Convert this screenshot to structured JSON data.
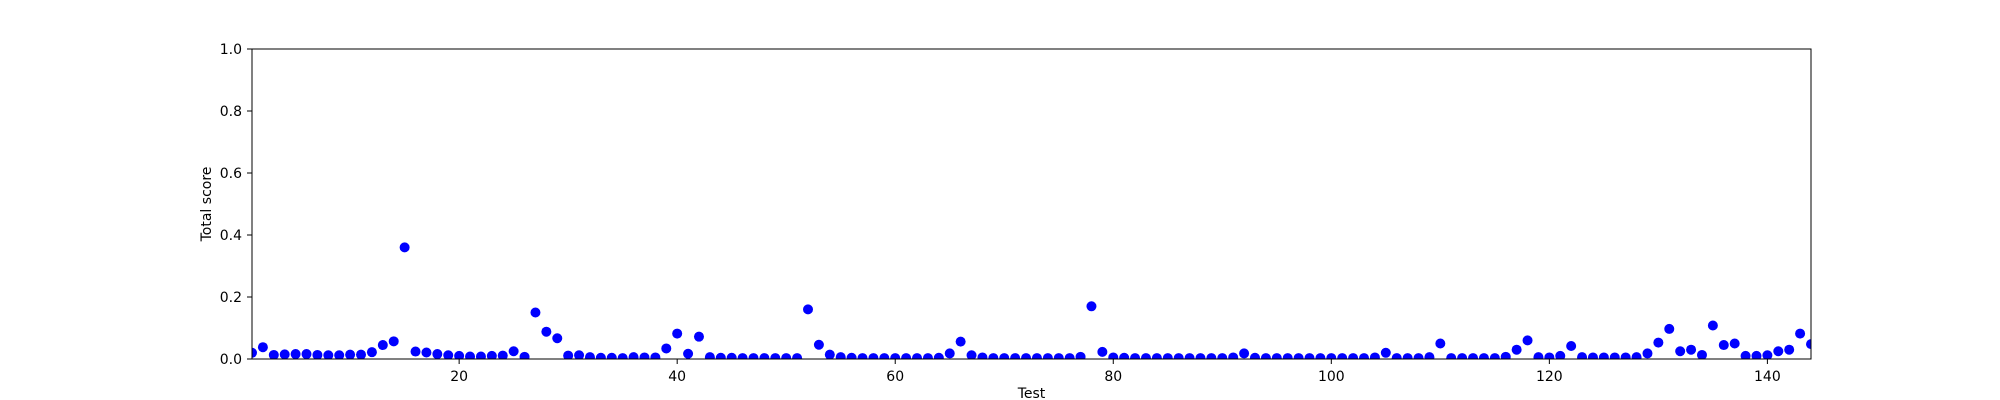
{
  "chart_data": {
    "type": "scatter",
    "xlabel": "Test",
    "ylabel": "Total score",
    "xlim": [
      1,
      144
    ],
    "ylim": [
      0,
      1
    ],
    "x_ticks": [
      "20",
      "40",
      "60",
      "80",
      "100",
      "120",
      "140"
    ],
    "y_ticks": [
      "0.0",
      "0.2",
      "0.4",
      "0.6",
      "0.8",
      "1.0"
    ],
    "grid": false,
    "marker_color": "#0000ff",
    "series": [
      {
        "x": [
          1,
          2,
          3,
          4,
          5,
          6,
          7,
          8,
          9,
          10,
          11,
          12,
          13,
          14,
          15,
          16,
          17,
          18,
          19,
          20,
          21,
          22,
          23,
          24,
          25,
          26,
          27,
          28,
          29,
          30,
          31,
          32,
          33,
          34,
          35,
          36,
          37,
          38,
          39,
          40,
          41,
          42,
          43,
          44,
          45,
          46,
          47,
          48,
          49,
          50,
          51,
          52,
          53,
          54,
          55,
          56,
          57,
          58,
          59,
          60,
          61,
          62,
          63,
          64,
          65,
          66,
          67,
          68,
          69,
          70,
          71,
          72,
          73,
          74,
          75,
          76,
          77,
          78,
          79,
          80,
          81,
          82,
          83,
          84,
          85,
          86,
          87,
          88,
          89,
          90,
          91,
          92,
          93,
          94,
          95,
          96,
          97,
          98,
          99,
          100,
          101,
          102,
          103,
          104,
          105,
          106,
          107,
          108,
          109,
          110,
          111,
          112,
          113,
          114,
          115,
          116,
          117,
          118,
          119,
          120,
          121,
          122,
          123,
          124,
          125,
          126,
          127,
          128,
          129,
          130,
          131,
          132,
          133,
          134,
          135,
          136,
          137,
          138,
          139,
          140,
          141,
          142,
          143,
          144
        ],
        "y": [
          0.02,
          0.038,
          0.013,
          0.015,
          0.016,
          0.016,
          0.013,
          0.012,
          0.012,
          0.014,
          0.014,
          0.022,
          0.045,
          0.057,
          0.36,
          0.024,
          0.021,
          0.016,
          0.012,
          0.01,
          0.008,
          0.008,
          0.01,
          0.011,
          0.025,
          0.007,
          0.15,
          0.088,
          0.067,
          0.011,
          0.012,
          0.006,
          0.004,
          0.004,
          0.003,
          0.006,
          0.005,
          0.005,
          0.034,
          0.082,
          0.017,
          0.072,
          0.006,
          0.004,
          0.004,
          0.003,
          0.003,
          0.003,
          0.003,
          0.003,
          0.003,
          0.16,
          0.046,
          0.014,
          0.006,
          0.004,
          0.003,
          0.003,
          0.003,
          0.003,
          0.003,
          0.003,
          0.003,
          0.004,
          0.018,
          0.056,
          0.012,
          0.005,
          0.003,
          0.003,
          0.003,
          0.003,
          0.003,
          0.003,
          0.003,
          0.003,
          0.007,
          0.17,
          0.023,
          0.005,
          0.004,
          0.003,
          0.003,
          0.003,
          0.003,
          0.003,
          0.003,
          0.003,
          0.003,
          0.003,
          0.005,
          0.018,
          0.004,
          0.003,
          0.003,
          0.003,
          0.003,
          0.003,
          0.003,
          0.003,
          0.003,
          0.003,
          0.003,
          0.005,
          0.02,
          0.003,
          0.003,
          0.003,
          0.006,
          0.05,
          0.003,
          0.003,
          0.003,
          0.003,
          0.003,
          0.007,
          0.03,
          0.06,
          0.006,
          0.005,
          0.01,
          0.042,
          0.006,
          0.005,
          0.005,
          0.005,
          0.005,
          0.006,
          0.018,
          0.053,
          0.097,
          0.025,
          0.03,
          0.013,
          0.108,
          0.045,
          0.05,
          0.01,
          0.01,
          0.012,
          0.025,
          0.03,
          0.082,
          0.048
        ]
      }
    ]
  }
}
